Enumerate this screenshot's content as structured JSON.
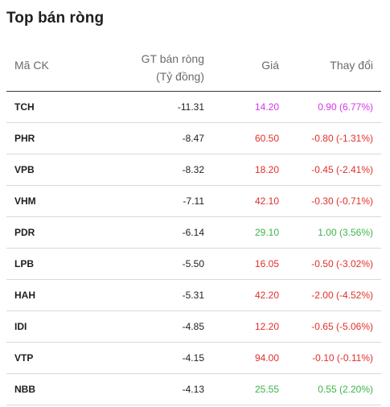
{
  "title": "Top bán ròng",
  "headers": {
    "code": "Mã CK",
    "net_line1": "GT bán ròng",
    "net_line2": "(Tỷ đồng)",
    "price": "Giá",
    "change": "Thay đổi"
  },
  "colors": {
    "down": "#e0302a",
    "up": "#3bb54a",
    "ceiling": "#d633e6"
  },
  "rows": [
    {
      "code": "TCH",
      "net": "-11.31",
      "price": "14.20",
      "change": "0.90 (6.77%)",
      "status": "ceiling"
    },
    {
      "code": "PHR",
      "net": "-8.47",
      "price": "60.50",
      "change": "-0.80 (-1.31%)",
      "status": "down"
    },
    {
      "code": "VPB",
      "net": "-8.32",
      "price": "18.20",
      "change": "-0.45 (-2.41%)",
      "status": "down"
    },
    {
      "code": "VHM",
      "net": "-7.11",
      "price": "42.10",
      "change": "-0.30 (-0.71%)",
      "status": "down"
    },
    {
      "code": "PDR",
      "net": "-6.14",
      "price": "29.10",
      "change": "1.00 (3.56%)",
      "status": "up"
    },
    {
      "code": "LPB",
      "net": "-5.50",
      "price": "16.05",
      "change": "-0.50 (-3.02%)",
      "status": "down"
    },
    {
      "code": "HAH",
      "net": "-5.31",
      "price": "42.20",
      "change": "-2.00 (-4.52%)",
      "status": "down"
    },
    {
      "code": "IDI",
      "net": "-4.85",
      "price": "12.20",
      "change": "-0.65 (-5.06%)",
      "status": "down"
    },
    {
      "code": "VTP",
      "net": "-4.15",
      "price": "94.00",
      "change": "-0.10 (-0.11%)",
      "status": "down"
    },
    {
      "code": "NBB",
      "net": "-4.13",
      "price": "25.55",
      "change": "0.55 (2.20%)",
      "status": "up"
    }
  ]
}
